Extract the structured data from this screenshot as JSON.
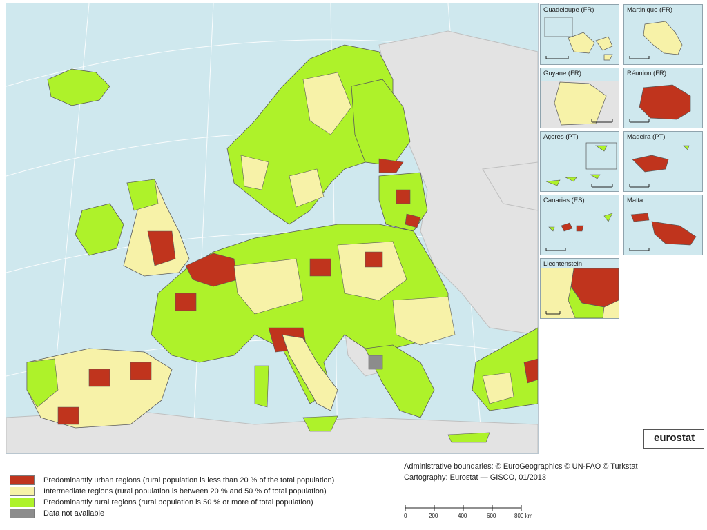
{
  "insets": [
    {
      "title": "Guadeloupe (FR)",
      "scale": [
        "0",
        "25"
      ]
    },
    {
      "title": "Martinique (FR)",
      "scale": [
        "0",
        "20"
      ]
    },
    {
      "title": "Guyane (FR)",
      "scale": [
        "0",
        "100"
      ]
    },
    {
      "title": "Réunion (FR)",
      "scale": [
        "0",
        "20"
      ]
    },
    {
      "title": "Açores (PT)",
      "scale": [
        "0",
        "50"
      ]
    },
    {
      "title": "Madeira (PT)",
      "scale": [
        "0",
        "20"
      ]
    },
    {
      "title": "Canarias (ES)",
      "scale": [
        "0",
        "100"
      ]
    },
    {
      "title": "Malta",
      "scale": [
        "0",
        "10"
      ]
    },
    {
      "title": "Liechtenstein",
      "scale": [
        "0",
        "5"
      ]
    }
  ],
  "legend": [
    {
      "label": "Predominantly urban regions (rural population is less than 20 % of the total population)",
      "color": "#c0341d"
    },
    {
      "label": "Intermediate regions (rural population is between 20 % and 50 % of total population)",
      "color": "#f7f2a8"
    },
    {
      "label": "Predominantly rural regions (rural population is 50 % or more of total population)",
      "color": "#aef22a"
    },
    {
      "label": "Data not available",
      "color": "#8c8c8c"
    }
  ],
  "credits": {
    "line1": "Administrative boundaries: © EuroGeographics © UN-FAO © Turkstat",
    "line2": "Cartography: Eurostat — GISCO, 01/2013"
  },
  "scalebar": {
    "ticks": [
      "0",
      "200",
      "400",
      "600",
      "800 km"
    ]
  },
  "logo": "eurostat",
  "colors": {
    "sea": "#cfe8ee",
    "non_eu_land": "#e3e3e3",
    "urban": "#c0341d",
    "intermediate": "#f7f2a8",
    "rural": "#aef22a",
    "na": "#8c8c8c"
  }
}
